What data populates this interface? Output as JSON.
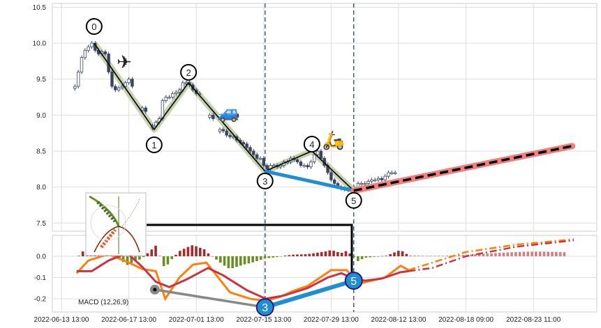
{
  "chart_data": [
    {
      "type": "candlestick",
      "panel": "price",
      "yticks": [
        "7.5",
        "8.0",
        "8.5",
        "9.0",
        "9.5",
        "10.0",
        "10.5"
      ],
      "ylim": [
        7.45,
        10.55
      ],
      "grid": true,
      "start_index": 4,
      "closes": [
        9.4,
        9.6,
        9.8,
        9.9,
        9.95,
        10.0,
        9.9,
        9.85,
        9.88,
        9.85,
        9.6,
        9.4,
        9.35,
        9.38,
        9.4,
        9.45,
        9.5,
        9.4,
        null,
        null,
        9.1,
        9.05,
        null,
        8.85,
        8.9,
        8.95,
        9.2,
        9.25,
        9.25,
        9.3,
        9.32,
        9.35,
        9.45,
        9.45,
        9.42,
        9.35,
        9.3,
        9.3,
        null,
        null,
        9.0,
        8.95,
        null,
        8.8,
        8.78,
        8.72,
        8.7,
        8.7,
        8.65,
        8.62,
        8.6,
        8.55,
        8.5,
        8.45,
        8.4,
        8.4,
        8.3,
        8.25,
        8.3,
        8.3,
        8.28,
        8.3,
        8.35,
        8.35,
        8.4,
        8.38,
        8.35,
        8.3,
        8.3,
        8.28,
        8.35,
        8.45,
        8.5,
        8.4,
        8.3,
        8.2,
        8.1,
        8.05,
        8.0,
        7.98,
        7.97,
        7.96,
        7.95,
        7.98,
        8.05,
        8.05,
        8.05,
        8.08,
        8.1,
        8.1,
        8.12,
        8.1,
        8.15,
        8.2,
        8.2,
        8.2
      ],
      "waves": [
        {
          "label": "0",
          "x": 9.7,
          "y": 10.0
        },
        {
          "label": "1",
          "x": 27.5,
          "y": 8.8
        },
        {
          "label": "2",
          "x": 37.7,
          "y": 9.45
        },
        {
          "label": "3",
          "x": 60.4,
          "y": 8.22
        },
        {
          "label": "4",
          "x": 74.3,
          "y": 8.5
        },
        {
          "label": "5",
          "x": 86.7,
          "y": 7.95
        }
      ],
      "projection": {
        "from": {
          "x": 86.7,
          "y": 7.95
        },
        "to": {
          "x": 151.5,
          "y": 8.57
        }
      },
      "emojis": [
        {
          "icon": "airplane",
          "glyph": "✈"
        },
        {
          "icon": "car",
          "glyph": "🚙"
        },
        {
          "icon": "scooter",
          "glyph": "🛵"
        }
      ]
    },
    {
      "type": "line",
      "panel": "macd",
      "label": "MACD (12,26,9)",
      "yticks": [
        "-0.2",
        "-0.1",
        "0.0"
      ],
      "ylim": [
        -0.27,
        0.1
      ],
      "series": [
        {
          "color": "#ff7f0e",
          "points": [
            [
              4.5,
              -0.08
            ],
            [
              8,
              -0.02
            ],
            [
              14,
              0.01
            ],
            [
              20,
              -0.03
            ],
            [
              24,
              -0.06
            ],
            [
              28,
              -0.07
            ],
            [
              30.8,
              -0.2
            ],
            [
              35,
              -0.1
            ],
            [
              39,
              -0.04
            ],
            [
              43,
              -0.03
            ],
            [
              50,
              -0.17
            ],
            [
              56,
              -0.2
            ],
            [
              60.6,
              -0.21
            ],
            [
              65,
              -0.19
            ],
            [
              68.5,
              -0.165
            ],
            [
              73,
              -0.14
            ],
            [
              80,
              -0.065
            ],
            [
              84.6,
              -0.065
            ],
            [
              88,
              -0.13
            ],
            [
              92,
              -0.115
            ],
            [
              96,
              -0.1
            ],
            [
              100.6,
              -0.045
            ],
            [
              103,
              -0.065
            ]
          ],
          "projection": [
            [
              103,
              -0.065
            ],
            [
              112,
              -0.02
            ],
            [
              120,
              0.02
            ],
            [
              135,
              0.055
            ],
            [
              152,
              0.08
            ]
          ]
        },
        {
          "color": "#cc3340",
          "points": [
            [
              4.5,
              -0.07
            ],
            [
              9,
              -0.07
            ],
            [
              14,
              -0.02
            ],
            [
              19.5,
              0.015
            ],
            [
              24,
              -0.05
            ],
            [
              28,
              -0.12
            ],
            [
              32,
              -0.145
            ],
            [
              37,
              -0.11
            ],
            [
              43.5,
              -0.055
            ],
            [
              48,
              -0.09
            ],
            [
              55,
              -0.16
            ],
            [
              60.6,
              -0.2
            ],
            [
              66,
              -0.185
            ],
            [
              73,
              -0.15
            ],
            [
              79,
              -0.1
            ],
            [
              83,
              -0.08
            ],
            [
              86,
              -0.1
            ],
            [
              90,
              -0.115
            ],
            [
              95,
              -0.105
            ],
            [
              100.6,
              -0.075
            ],
            [
              103,
              -0.07
            ]
          ],
          "projection": [
            [
              103,
              -0.07
            ],
            [
              110,
              -0.055
            ],
            [
              120,
              0.0
            ],
            [
              135,
              0.045
            ],
            [
              152,
              0.075
            ]
          ]
        }
      ],
      "waves": [
        {
          "label": "",
          "x": 27.7,
          "y": -0.157
        },
        {
          "label": "3",
          "x": 60.4,
          "y": -0.24
        },
        {
          "label": "5",
          "x": 86.7,
          "y": -0.115
        }
      ]
    }
  ],
  "xticks": [
    "2022-06-13 13:00",
    "2022-06-17 13:00",
    "2022-07-01 13:00",
    "2022-07-15 13:00",
    "2022-07-29 13:00",
    "2022-08-12 13:00",
    "2022-08-18 09:00",
    "2022-08-23 11:00"
  ],
  "colors": {
    "up": "#a52a2a",
    "down": "#6b8e23",
    "wave_blue": "#1f8fd1",
    "projection": "#f08080",
    "trend": "#c8d3b0"
  }
}
